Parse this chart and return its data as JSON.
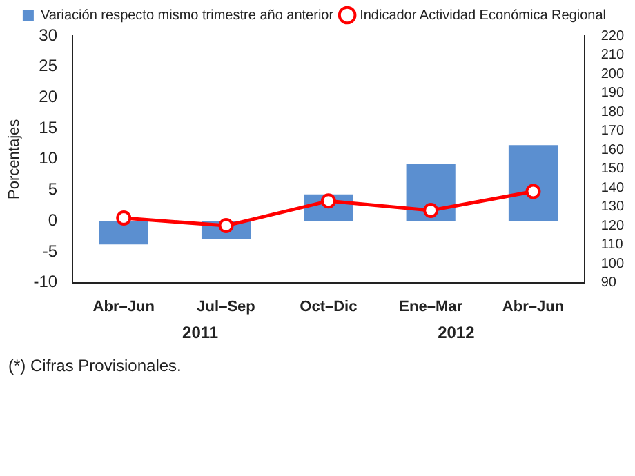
{
  "chart_data": {
    "type": "bar",
    "categories": [
      "Abr–Jun",
      "Jul–Sep",
      "Oct–Dic",
      "Ene–Mar",
      "Abr–Jun"
    ],
    "series": [
      {
        "name": "Variación respecto mismo trimestre año anterior",
        "color": "#5b8fd0",
        "values": [
          -3.8,
          -2.9,
          4.3,
          9.2,
          12.3
        ]
      },
      {
        "name": "Indicador Actividad Económica Regional",
        "type": "line",
        "axis": "y2",
        "color": "#ff0000",
        "marker": "circle",
        "values": [
          124,
          120,
          133,
          128,
          138
        ]
      }
    ],
    "ylabel": "Porcentajes",
    "ylim": [
      -10,
      30
    ],
    "yticks": [
      -10,
      -5,
      0,
      5,
      10,
      15,
      20,
      25,
      30
    ],
    "y2lim": [
      90,
      220
    ],
    "y2ticks": [
      90,
      100,
      110,
      120,
      130,
      140,
      150,
      160,
      170,
      180,
      190,
      200,
      210,
      220
    ],
    "grid": false,
    "legend": "top",
    "annotations": [
      "2011",
      "2012",
      "(*) Cifras Provisionales."
    ]
  }
}
